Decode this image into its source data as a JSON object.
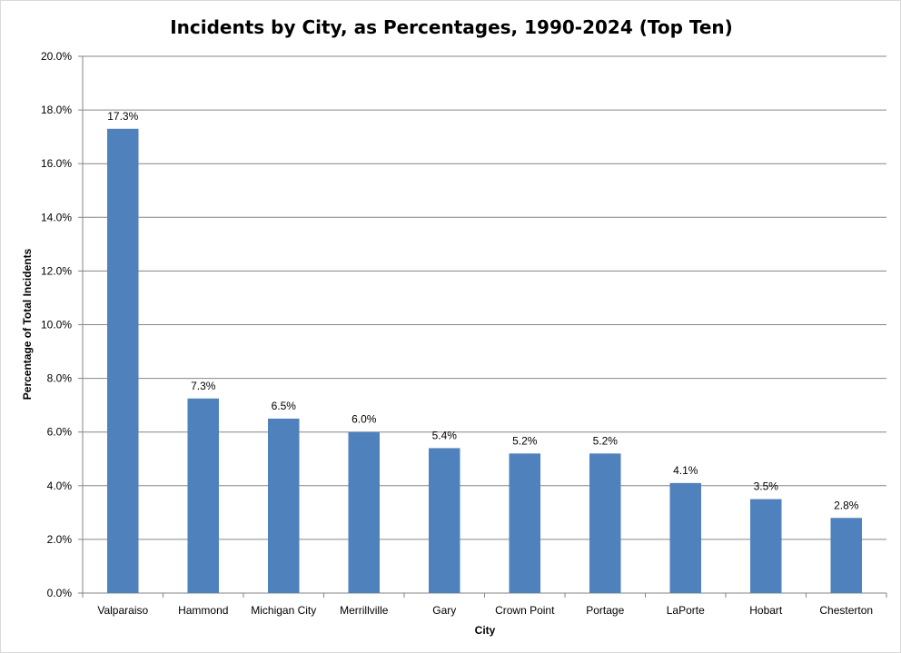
{
  "chart_data": {
    "type": "bar",
    "title": "Incidents by City, as Percentages, 1990-2024 (Top Ten)",
    "xlabel": "City",
    "ylabel": "Percentage of Total Incidents",
    "categories": [
      "Valparaiso",
      "Hammond",
      "Michigan City",
      "Merrillville",
      "Gary",
      "Crown Point",
      "Portage",
      "LaPorte",
      "Hobart",
      "Chesterton"
    ],
    "values": [
      17.3,
      7.25,
      6.5,
      6.0,
      5.4,
      5.2,
      5.2,
      4.1,
      3.5,
      2.8
    ],
    "data_labels": [
      "17.3%",
      "7.3%",
      "6.5%",
      "6.0%",
      "5.4%",
      "5.2%",
      "5.2%",
      "4.1%",
      "3.5%",
      "2.8%"
    ],
    "ylim": [
      0,
      20
    ],
    "yticks": [
      "0.0%",
      "2.0%",
      "4.0%",
      "6.0%",
      "8.0%",
      "10.0%",
      "12.0%",
      "14.0%",
      "16.0%",
      "18.0%",
      "20.0%"
    ],
    "grid": true,
    "legend": "none",
    "colors": {
      "bar": "#4f81bd",
      "grid": "#868686",
      "axis": "#868686"
    }
  }
}
